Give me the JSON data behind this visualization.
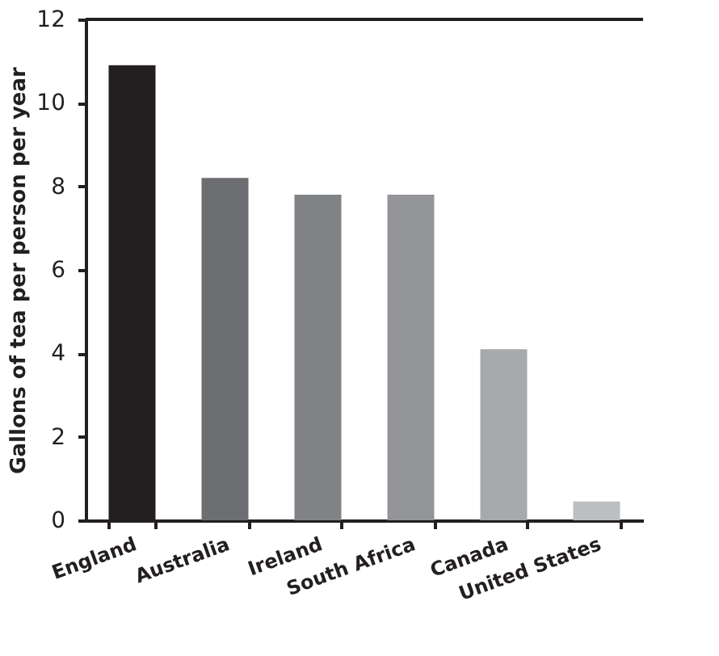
{
  "chart_data": {
    "type": "bar",
    "ylabel": "Gallons of tea per person per year",
    "categories": [
      "England",
      "Australia",
      "Ireland",
      "South Africa",
      "Canada",
      "United States"
    ],
    "values": [
      10.9,
      8.2,
      7.8,
      7.8,
      4.1,
      0.45
    ],
    "colors": [
      "#231f20",
      "#6d6e71",
      "#808285",
      "#939598",
      "#a7a9ac",
      "#bcbec0"
    ],
    "ylim": [
      0,
      12
    ],
    "yticks": [
      0,
      2,
      4,
      6,
      8,
      10,
      12
    ],
    "grid": false
  }
}
